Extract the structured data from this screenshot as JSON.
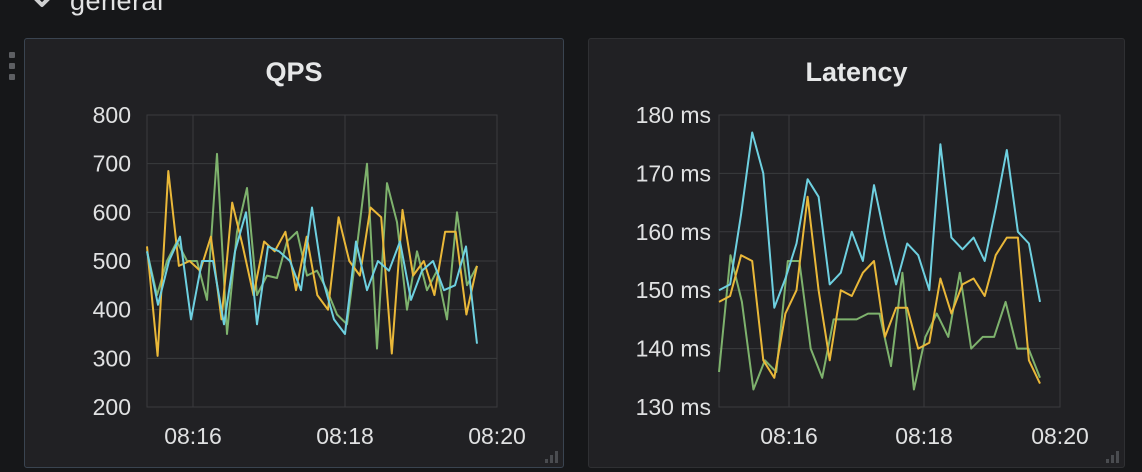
{
  "row": {
    "title": "general",
    "collapse_icon": "chevron-down-icon"
  },
  "colors": {
    "background": "#161719",
    "panel": "#212124",
    "grid": "#3a3b3e",
    "series_green": "#7eb26d",
    "series_yellow": "#eab839",
    "series_cyan": "#6ed0e0"
  },
  "panels": [
    {
      "title": "QPS",
      "chart_data": {
        "type": "line",
        "title": "QPS",
        "xlabel": "",
        "ylabel": "",
        "ylim": [
          200,
          800
        ],
        "y_ticks": [
          200,
          300,
          400,
          500,
          600,
          700,
          800
        ],
        "y_tick_labels": [
          "200",
          "300",
          "400",
          "500",
          "600",
          "700",
          "800"
        ],
        "x_ticks": [
          "08:16",
          "08:18",
          "08:20"
        ],
        "grid": true,
        "legend": "none",
        "series": [
          {
            "color": "#7eb26d",
            "values": [
              520,
              430,
              500,
              540,
              500,
              500,
              420,
              720,
              350,
              560,
              650,
              430,
              470,
              465,
              540,
              560,
              470,
              480,
              440,
              390,
              370,
              530,
              700,
              320,
              660,
              580,
              400,
              520,
              440,
              480,
              380,
              600,
              450,
              490
            ]
          },
          {
            "color": "#eab839",
            "values": [
              530,
              305,
              685,
              490,
              500,
              480,
              550,
              380,
              620,
              530,
              430,
              540,
              520,
              560,
              440,
              550,
              430,
              400,
              590,
              500,
              470,
              610,
              590,
              310,
              605,
              470,
              500,
              430,
              560,
              560,
              390,
              490
            ]
          },
          {
            "color": "#6ed0e0",
            "values": [
              520,
              410,
              500,
              550,
              380,
              500,
              500,
              370,
              520,
              600,
              370,
              530,
              520,
              500,
              440,
              610,
              460,
              380,
              350,
              540,
              440,
              500,
              480,
              540,
              420,
              480,
              500,
              440,
              450,
              530,
              330
            ]
          }
        ]
      }
    },
    {
      "title": "Latency",
      "chart_data": {
        "type": "line",
        "title": "Latency",
        "xlabel": "",
        "ylabel": "",
        "ylim": [
          130,
          180
        ],
        "y_ticks": [
          130,
          140,
          150,
          160,
          170,
          180
        ],
        "y_tick_labels": [
          "130 ms",
          "140 ms",
          "150 ms",
          "160 ms",
          "170 ms",
          "180 ms"
        ],
        "x_ticks": [
          "08:16",
          "08:18",
          "08:20"
        ],
        "grid": true,
        "legend": "none",
        "series": [
          {
            "color": "#7eb26d",
            "values": [
              136,
              156,
              148,
              133,
              138,
              136,
              155,
              155,
              140,
              135,
              145,
              145,
              145,
              146,
              146,
              137,
              153,
              133,
              142,
              146,
              142,
              153,
              140,
              142,
              142,
              148,
              140,
              140,
              135
            ]
          },
          {
            "color": "#eab839",
            "values": [
              148,
              149,
              156,
              155,
              138,
              135,
              146,
              150,
              166,
              150,
              138,
              150,
              149,
              153,
              155,
              142,
              147,
              147,
              140,
              141,
              152,
              146,
              151,
              152,
              149,
              156,
              159,
              159,
              138,
              134
            ]
          },
          {
            "color": "#6ed0e0",
            "values": [
              150,
              151,
              163,
              177,
              170,
              147,
              152,
              158,
              169,
              166,
              151,
              153,
              160,
              155,
              168,
              159,
              151,
              158,
              156,
              150,
              175,
              159,
              157,
              159,
              155,
              164,
              174,
              160,
              158,
              148
            ]
          }
        ]
      }
    }
  ]
}
